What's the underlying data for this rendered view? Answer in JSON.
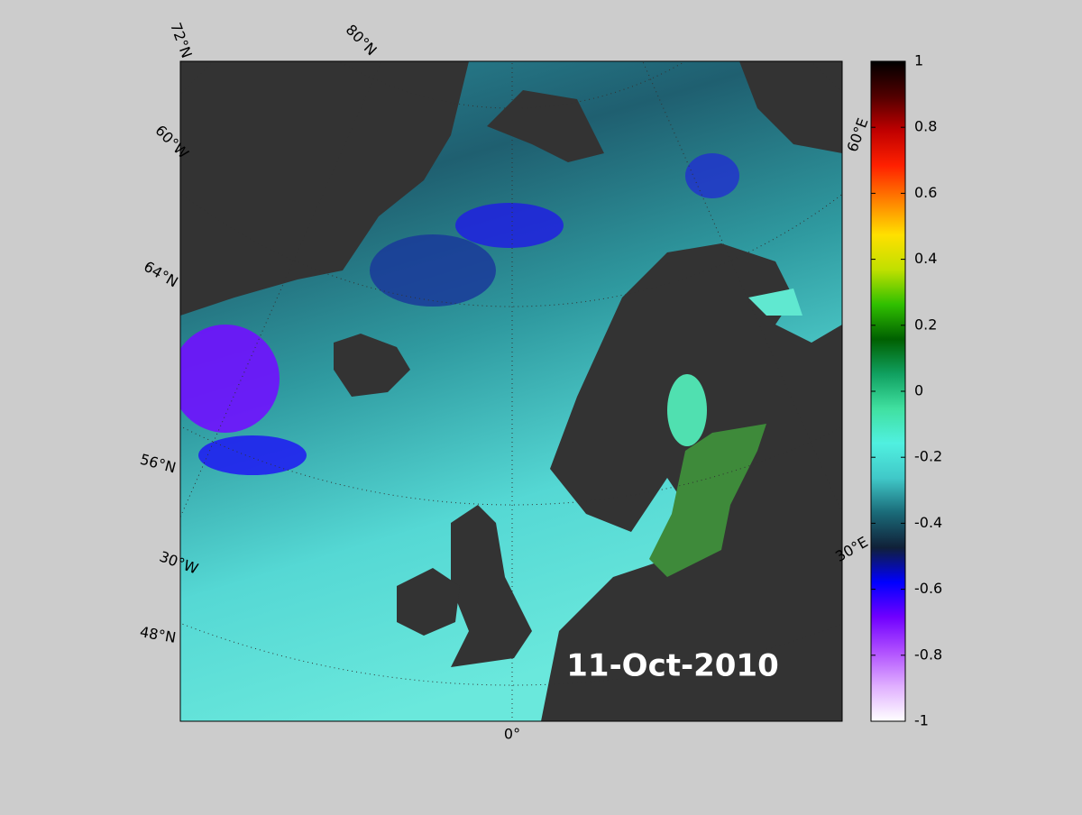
{
  "map": {
    "date_label": "11-Oct-2010",
    "grid_labels": [
      "72°N",
      "80°N",
      "60°W",
      "64°N",
      "56°N",
      "30°W",
      "48°N",
      "0°",
      "60°E",
      "30°E"
    ],
    "colorbar": {
      "range": [
        -1,
        1
      ],
      "ticks": [
        1,
        0.8,
        0.6,
        0.4,
        0.2,
        0,
        -0.2,
        -0.4,
        -0.6,
        -0.8,
        -1
      ],
      "colors": [
        "#ffffff",
        "#e0b0ff",
        "#b050ff",
        "#7000ff",
        "#0000ff",
        "#102038",
        "#1a6a78",
        "#40c8c8",
        "#50f0e0",
        "#40e0a0",
        "#10a060",
        "#006000",
        "#30c000",
        "#c0e000",
        "#ffe000",
        "#ff8000",
        "#ff2000",
        "#c00000",
        "#500000",
        "#000000"
      ]
    }
  }
}
